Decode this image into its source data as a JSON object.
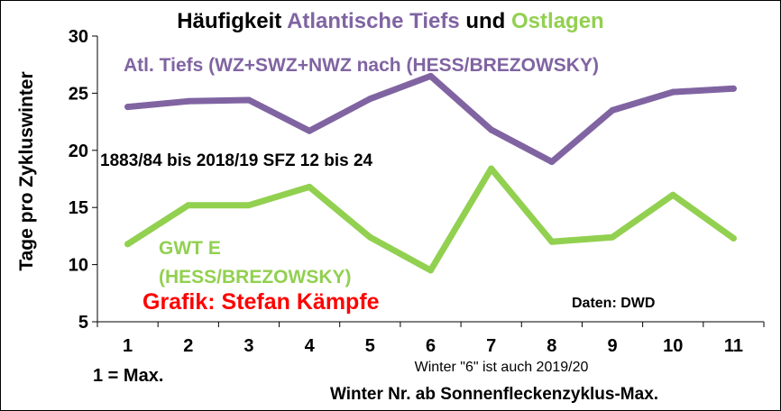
{
  "chart_data": {
    "type": "line",
    "title_parts": [
      {
        "text": "Häufigkeit ",
        "color": "#000000"
      },
      {
        "text": "Atlantische Tiefs",
        "color": "#8064a2"
      },
      {
        "text": " und ",
        "color": "#000000"
      },
      {
        "text": "Ostlagen",
        "color": "#92d050"
      }
    ],
    "xlabel": "Winter Nr. ab Sonnenfleckenzyklus-Max.",
    "ylabel": "Tage pro Zykluswinter",
    "x": [
      1,
      2,
      3,
      4,
      5,
      6,
      7,
      8,
      9,
      10,
      11
    ],
    "ylim": [
      5,
      30
    ],
    "yticks": [
      5,
      10,
      15,
      20,
      25,
      30
    ],
    "grid": false,
    "series": [
      {
        "name": "Atl. Tiefs (WZ+SWZ+NWZ nach (HESS/BREZOWSKY)",
        "color": "#8064a2",
        "values": [
          23.8,
          24.3,
          24.4,
          21.7,
          24.5,
          26.5,
          21.8,
          19.0,
          23.5,
          25.1,
          25.4
        ]
      },
      {
        "name": "GWT E (HESS/BREZOWSKY)",
        "color": "#92d050",
        "values": [
          11.8,
          15.2,
          15.2,
          16.8,
          12.4,
          9.5,
          18.4,
          12.0,
          12.4,
          16.1,
          12.3
        ]
      }
    ],
    "annotations": {
      "period": "1883/84 bis 2018/19  SFZ 12 bis 24",
      "credit": "Grafik: Stefan Kämpfe",
      "source": "Daten: DWD",
      "max_note": "1 = Max.",
      "winter_note": "Winter \"6\"  ist auch 2019/20"
    }
  }
}
